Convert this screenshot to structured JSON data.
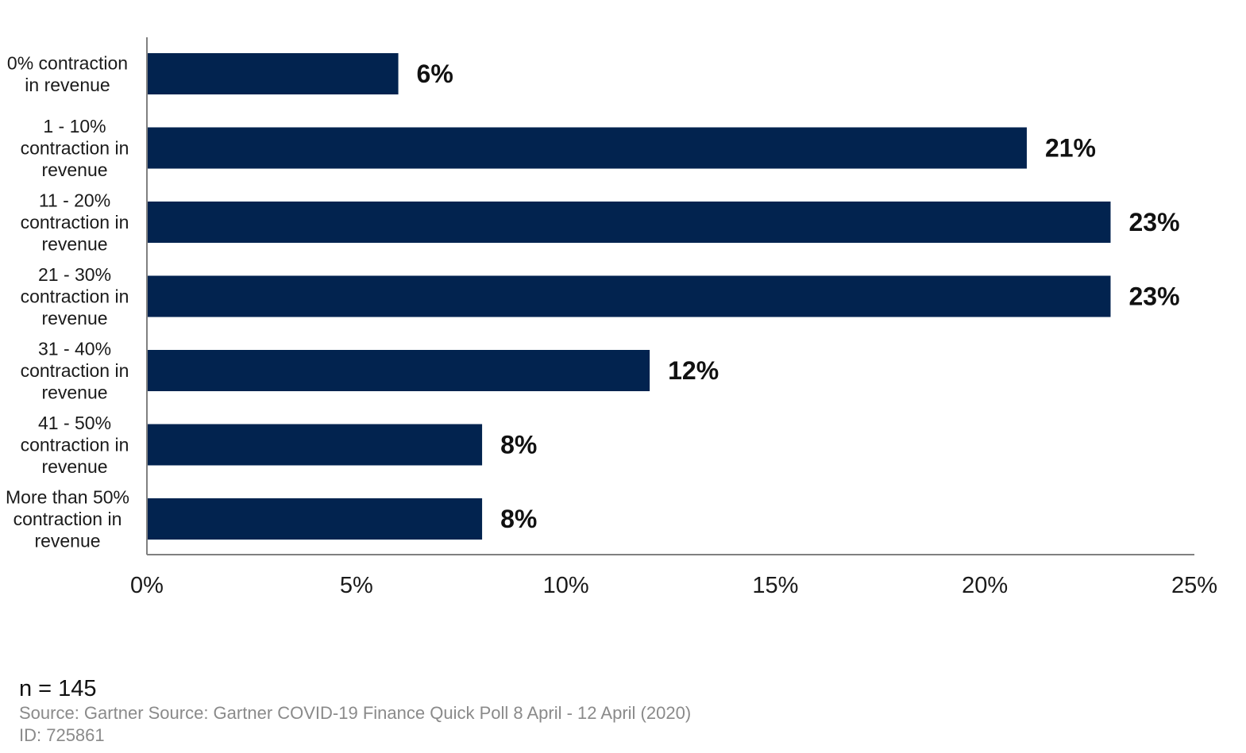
{
  "chart_data": {
    "type": "bar",
    "orientation": "horizontal",
    "categories": [
      [
        "0% contraction",
        "in revenue"
      ],
      [
        "1 - 10%",
        "contraction in",
        "revenue"
      ],
      [
        "11 - 20%",
        "contraction in",
        "revenue"
      ],
      [
        "21 - 30%",
        "contraction in",
        "revenue"
      ],
      [
        "31 - 40%",
        "contraction in",
        "revenue"
      ],
      [
        "41 - 50%",
        "contraction in",
        "revenue"
      ],
      [
        "More than 50%",
        "contraction in",
        "revenue"
      ]
    ],
    "values": [
      6,
      21,
      23,
      23,
      12,
      8,
      8
    ],
    "data_labels": [
      "6%",
      "21%",
      "23%",
      "23%",
      "12%",
      "8%",
      "8%"
    ],
    "x_ticks": [
      "0%",
      "5%",
      "10%",
      "15%",
      "20%",
      "25%"
    ],
    "xlim": [
      0,
      25
    ],
    "bar_color": "#02234f",
    "grid": false,
    "legend": "none"
  },
  "footer": {
    "n": "n = 145",
    "source": "Source: Gartner Source: Gartner COVID-19 Finance Quick Poll 8 April - 12 April (2020)",
    "id": "ID: 725861"
  }
}
